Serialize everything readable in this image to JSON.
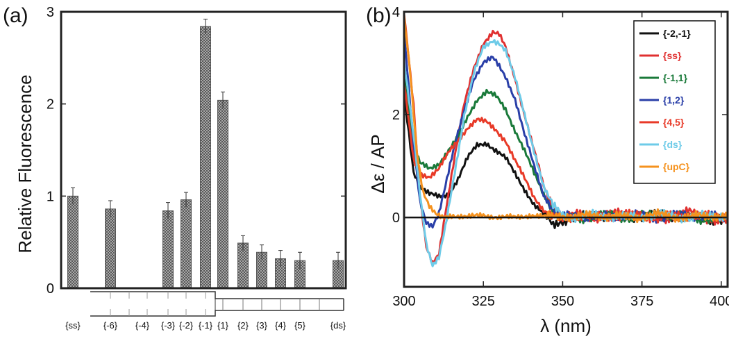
{
  "chart_data": [
    {
      "type": "bar",
      "panel_label": "(a)",
      "ylabel": "Relative Fluorescence",
      "xlabel": "",
      "ylim": [
        0,
        3
      ],
      "yticks": [
        "0",
        "1",
        "2",
        "3"
      ],
      "categories": [
        "{ss}",
        "{-6}",
        "{-4}",
        "{-3}",
        "{-2}",
        "{-1}",
        "{1}",
        "{2}",
        "{3}",
        "{4}",
        "{5}",
        "{ds}"
      ],
      "values": [
        1.0,
        0.86,
        null,
        0.84,
        0.96,
        2.84,
        2.04,
        0.49,
        0.39,
        0.32,
        0.3,
        0.3
      ],
      "errors": [
        0.09,
        0.09,
        null,
        0.09,
        0.08,
        0.08,
        0.09,
        0.08,
        0.08,
        0.09,
        0.09,
        0.09
      ],
      "bar_pattern": "crosshatch",
      "bar_colors": {
        "fill": "#a8a8a8",
        "stroke": "#555555",
        "error": "#333333",
        "axis": "#222222",
        "strand": "#333333"
      }
    },
    {
      "type": "line",
      "panel_label": "(b)",
      "xlabel": "λ (nm)",
      "ylabel": "Δε / AP",
      "xlim": [
        300,
        402
      ],
      "ylim": [
        -1.35,
        4
      ],
      "xticks": [
        "300",
        "325",
        "350",
        "375",
        "400"
      ],
      "yticks": [
        "0",
        "2",
        "4"
      ],
      "legend_position": "top-right",
      "reference_line_y": 0,
      "series": [
        {
          "name": "{-2,-1}",
          "color": "#111111",
          "x": [
            300,
            303,
            305,
            308,
            311,
            314,
            317,
            320,
            323,
            326,
            329,
            332,
            335,
            338,
            341,
            344,
            347,
            350,
            355,
            360,
            370,
            380,
            390,
            400,
            402
          ],
          "y": [
            2.4,
            0.9,
            0.6,
            0.45,
            0.4,
            0.45,
            0.75,
            1.15,
            1.4,
            1.45,
            1.3,
            1.15,
            0.85,
            0.55,
            0.25,
            0.05,
            -0.15,
            -0.05,
            0.0,
            0.05,
            0.0,
            0.05,
            0.0,
            -0.05,
            0.0
          ]
        },
        {
          "name": "{ss}",
          "color": "#e03030",
          "x": [
            300,
            303,
            305,
            307,
            309,
            311,
            313,
            316,
            319,
            322,
            325,
            328,
            330,
            332,
            335,
            338,
            341,
            344,
            347,
            350,
            355,
            360,
            370,
            380,
            390,
            400,
            402
          ],
          "y": [
            4.0,
            2.2,
            0.4,
            -0.6,
            -0.9,
            -0.7,
            0.1,
            1.2,
            2.2,
            2.9,
            3.4,
            3.6,
            3.55,
            3.3,
            2.7,
            2.0,
            1.3,
            0.6,
            0.2,
            0.0,
            0.05,
            0.0,
            0.1,
            -0.05,
            0.1,
            -0.1,
            0.0
          ]
        },
        {
          "name": "{-1,1}",
          "color": "#1a7a3a",
          "x": [
            300,
            303,
            305,
            308,
            311,
            314,
            317,
            320,
            323,
            326,
            329,
            332,
            335,
            338,
            341,
            344,
            347,
            350,
            355,
            360,
            370,
            380,
            390,
            400,
            402
          ],
          "y": [
            2.8,
            1.4,
            1.05,
            0.95,
            1.05,
            1.3,
            1.55,
            1.95,
            2.3,
            2.45,
            2.35,
            2.1,
            1.7,
            1.3,
            0.85,
            0.45,
            0.15,
            0.0,
            -0.05,
            0.05,
            0.0,
            0.05,
            0.0,
            -0.05,
            0.0
          ]
        },
        {
          "name": "{1,2}",
          "color": "#2a3fa8",
          "x": [
            300,
            303,
            305,
            307,
            309,
            311,
            313,
            316,
            319,
            322,
            325,
            328,
            330,
            332,
            335,
            338,
            341,
            344,
            347,
            350,
            355,
            360,
            370,
            380,
            390,
            400,
            402
          ],
          "y": [
            3.6,
            1.4,
            0.3,
            -0.1,
            -0.15,
            0.1,
            0.6,
            1.4,
            2.1,
            2.7,
            3.0,
            3.1,
            2.95,
            2.75,
            2.3,
            1.6,
            1.0,
            0.45,
            0.15,
            0.0,
            0.05,
            0.0,
            0.05,
            0.0,
            0.05,
            0.0,
            0.0
          ]
        },
        {
          "name": "{4,5}",
          "color": "#e83a28",
          "x": [
            300,
            303,
            305,
            308,
            311,
            314,
            317,
            320,
            323,
            326,
            329,
            332,
            335,
            338,
            341,
            344,
            347,
            350,
            355,
            360,
            370,
            380,
            390,
            400,
            402
          ],
          "y": [
            2.6,
            1.1,
            0.85,
            0.8,
            0.95,
            1.25,
            1.5,
            1.75,
            1.9,
            1.85,
            1.7,
            1.5,
            1.1,
            0.75,
            0.4,
            0.15,
            0.0,
            -0.05,
            0.05,
            0.0,
            0.05,
            0.0,
            0.05,
            0.0,
            0.0
          ]
        },
        {
          "name": "{ds}",
          "color": "#6ecbe8",
          "x": [
            300,
            303,
            305,
            307,
            309,
            311,
            313,
            316,
            319,
            322,
            325,
            328,
            330,
            332,
            335,
            338,
            341,
            344,
            347,
            350,
            355,
            360,
            370,
            380,
            390,
            400,
            402
          ],
          "y": [
            3.0,
            1.6,
            0.5,
            -0.5,
            -0.95,
            -0.8,
            -0.2,
            0.9,
            2.0,
            2.8,
            3.3,
            3.45,
            3.4,
            3.25,
            2.7,
            2.0,
            1.3,
            0.6,
            0.2,
            0.05,
            0.0,
            0.05,
            0.0,
            0.05,
            0.0,
            0.05,
            0.0
          ]
        },
        {
          "name": "{upC}",
          "color": "#f5921e",
          "x": [
            300,
            302,
            304,
            306,
            308,
            310,
            312,
            315,
            320,
            325,
            330,
            335,
            340,
            345,
            350,
            355,
            360,
            370,
            380,
            390,
            400,
            402
          ],
          "y": [
            3.9,
            2.8,
            1.3,
            0.5,
            0.2,
            0.05,
            0.0,
            0.05,
            0.0,
            0.05,
            0.0,
            0.0,
            0.05,
            0.0,
            0.05,
            0.0,
            0.05,
            0.0,
            0.05,
            0.0,
            0.05,
            0.0
          ]
        }
      ]
    }
  ]
}
